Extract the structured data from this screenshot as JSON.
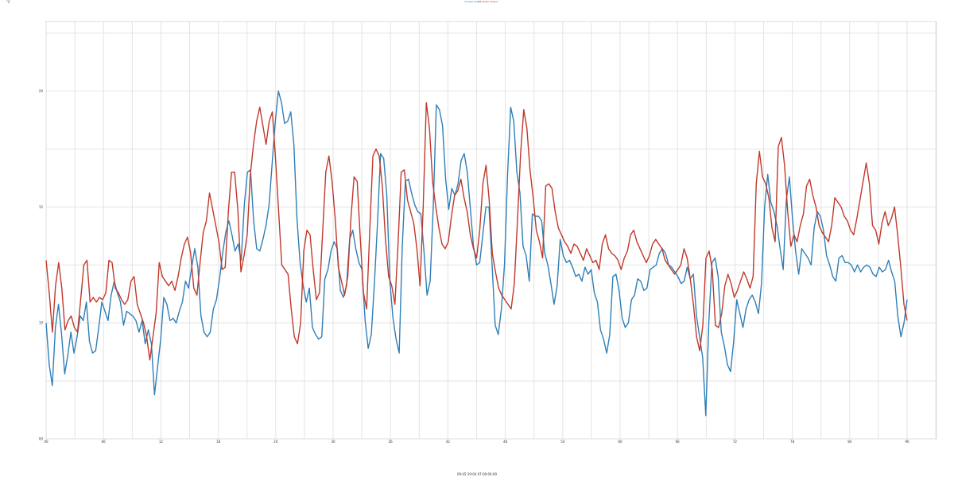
{
  "chart_data": {
    "type": "line",
    "title": "",
    "xlabel": "09:45:19:04 07:00:00:00",
    "ylabel": "",
    "corner_label": "°C",
    "x_ticks": [
      "00",
      "06",
      "12",
      "18",
      "24",
      "30",
      "36",
      "42",
      "48",
      "54",
      "60",
      "66",
      "72",
      "78",
      "84",
      "90"
    ],
    "y_ticks": [
      "00",
      "10",
      "15",
      "20"
    ],
    "ylim": [
      5,
      23
    ],
    "grid": true,
    "legend_placement": "top-center",
    "series": [
      {
        "name": "Real World",
        "color": "#2e7fb8",
        "values": [
          10.0,
          8.2,
          7.3,
          9.8,
          10.8,
          9.5,
          7.8,
          8.6,
          9.6,
          8.7,
          9.4,
          10.3,
          10.1,
          10.9,
          9.2,
          8.7,
          8.8,
          9.8,
          10.9,
          10.5,
          10.1,
          11.2,
          11.8,
          11.3,
          10.9,
          9.9,
          10.5,
          10.4,
          10.3,
          10.1,
          9.6,
          10.1,
          9.1,
          9.7,
          9.1,
          6.9,
          8.1,
          9.3,
          11.1,
          10.8,
          10.1,
          10.2,
          10.0,
          10.5,
          10.9,
          11.8,
          11.5,
          12.4,
          13.2,
          12.4,
          10.3,
          9.6,
          9.4,
          9.6,
          10.6,
          11.0,
          11.9,
          13.0,
          13.9,
          14.4,
          13.8,
          13.1,
          13.4,
          12.7,
          15.1,
          16.5,
          16.6,
          14.4,
          13.2,
          13.1,
          13.6,
          14.2,
          15.1,
          16.9,
          18.7,
          20.0,
          19.5,
          18.6,
          18.7,
          19.1,
          17.7,
          14.5,
          12.6,
          11.6,
          10.9,
          11.5,
          9.8,
          9.5,
          9.3,
          9.4,
          11.9,
          12.3,
          13.1,
          13.5,
          13.2,
          11.4,
          11.1,
          11.6,
          13.6,
          14.0,
          13.2,
          12.6,
          12.3,
          10.1,
          8.9,
          9.5,
          11.7,
          14.3,
          17.3,
          17.1,
          15.5,
          11.8,
          10.2,
          9.3,
          8.7,
          13.3,
          16.1,
          16.2,
          15.6,
          15.1,
          14.8,
          14.7,
          13.1,
          11.2,
          11.8,
          15.0,
          19.4,
          19.2,
          18.5,
          16.2,
          14.9,
          15.8,
          15.5,
          16.0,
          17.0,
          17.3,
          16.5,
          14.9,
          13.3,
          12.5,
          12.6,
          13.8,
          15.0,
          15.0,
          12.5,
          9.9,
          9.5,
          10.6,
          12.5,
          16.4,
          19.3,
          18.7,
          16.5,
          15.6,
          13.3,
          12.9,
          11.8,
          14.7,
          14.6,
          14.6,
          14.4,
          13.0,
          12.5,
          11.7,
          10.8,
          11.6,
          13.6,
          12.9,
          12.6,
          12.7,
          12.4,
          12.0,
          12.1,
          11.8,
          12.4,
          12.1,
          12.3,
          11.3,
          10.9,
          9.7,
          9.3,
          8.7,
          9.5,
          12.0,
          12.1,
          11.4,
          10.2,
          9.8,
          10.0,
          11.0,
          11.2,
          11.9,
          11.8,
          11.4,
          11.5,
          12.3,
          12.4,
          12.5,
          13.0,
          13.2,
          13.0,
          12.5,
          12.4,
          12.2,
          12.0,
          11.7,
          11.8,
          12.4,
          11.9,
          12.1,
          10.3,
          9.4,
          8.5,
          6.0,
          10.1,
          12.6,
          12.8,
          12.0,
          9.6,
          9.0,
          8.2,
          7.9,
          9.2,
          11.0,
          10.4,
          9.8,
          10.6,
          11.0,
          11.2,
          10.9,
          10.4,
          11.7,
          15.0,
          16.4,
          15.2,
          14.8,
          14.2,
          13.2,
          12.3,
          15.3,
          16.3,
          14.5,
          13.1,
          12.1,
          13.2,
          13.0,
          12.8,
          12.5,
          14.1,
          14.8,
          14.6,
          14.0,
          12.9,
          12.5,
          12.0,
          11.8,
          12.8,
          12.9,
          12.6,
          12.6,
          12.5,
          12.2,
          12.5,
          12.2,
          12.4,
          12.5,
          12.4,
          12.1,
          12.0,
          12.4,
          12.2,
          12.3,
          12.7,
          12.2,
          11.8,
          10.3,
          9.4,
          10.0,
          11.0
        ],
        "x_step": 0.5,
        "x_start": 0
      },
      {
        "name": "Model Output",
        "color": "#c0392b",
        "values": [
          12.7,
          11.3,
          9.6,
          11.6,
          12.6,
          11.5,
          9.7,
          10.1,
          10.3,
          9.8,
          9.6,
          11.0,
          12.5,
          12.7,
          10.9,
          11.1,
          10.9,
          11.1,
          11.0,
          11.3,
          12.7,
          12.6,
          11.5,
          11.3,
          11.0,
          10.8,
          11.0,
          11.8,
          12.0,
          10.8,
          10.4,
          10.0,
          9.4,
          8.4,
          9.4,
          10.4,
          12.6,
          12.0,
          11.8,
          11.6,
          11.8,
          11.4,
          12.0,
          12.8,
          13.4,
          13.7,
          13.0,
          11.5,
          11.2,
          12.6,
          13.9,
          14.4,
          15.6,
          14.9,
          14.2,
          13.5,
          12.3,
          12.4,
          14.8,
          16.5,
          16.5,
          14.9,
          12.2,
          12.9,
          13.8,
          16.4,
          17.7,
          18.7,
          19.3,
          18.5,
          17.7,
          18.7,
          19.1,
          17.1,
          14.8,
          12.5,
          12.3,
          12.1,
          10.6,
          9.4,
          9.1,
          10.0,
          13.1,
          14.0,
          13.8,
          12.3,
          11.0,
          11.3,
          13.9,
          16.5,
          17.2,
          16.1,
          14.5,
          12.4,
          11.8,
          11.2,
          12.0,
          14.5,
          16.3,
          16.1,
          13.6,
          11.3,
          10.6,
          14.0,
          17.2,
          17.5,
          17.2,
          15.9,
          13.6,
          12.0,
          11.6,
          10.8,
          13.4,
          16.5,
          16.6,
          15.3,
          14.8,
          14.3,
          13.2,
          11.6,
          15.0,
          19.5,
          18.4,
          16.1,
          15.0,
          14.1,
          13.4,
          13.2,
          13.5,
          14.6,
          15.5,
          15.7,
          16.2,
          15.4,
          14.8,
          13.8,
          13.2,
          12.8,
          14.0,
          16.0,
          16.8,
          15.3,
          13.0,
          12.2,
          11.5,
          11.2,
          11.0,
          10.8,
          10.6,
          11.7,
          14.4,
          17.3,
          19.2,
          18.4,
          16.6,
          15.4,
          14.0,
          13.5,
          12.8,
          15.9,
          16.0,
          15.8,
          14.8,
          14.1,
          13.8,
          13.5,
          13.3,
          13.0,
          13.4,
          13.3,
          13.0,
          12.7,
          13.2,
          12.9,
          12.6,
          12.7,
          12.3,
          13.4,
          13.8,
          13.2,
          13.0,
          12.9,
          12.7,
          12.3,
          12.8,
          13.1,
          13.8,
          14.0,
          13.5,
          13.2,
          12.9,
          12.6,
          12.9,
          13.4,
          13.6,
          13.4,
          13.2,
          12.7,
          12.5,
          12.3,
          12.1,
          12.3,
          12.5,
          13.2,
          12.8,
          11.9,
          10.8,
          9.4,
          8.8,
          9.9,
          12.8,
          13.1,
          12.3,
          9.9,
          9.8,
          10.4,
          11.6,
          12.1,
          11.7,
          11.1,
          11.4,
          11.8,
          12.2,
          11.9,
          11.5,
          12.0,
          16.0,
          17.4,
          16.3,
          16.0,
          15.4,
          14.1,
          13.5,
          17.6,
          18.0,
          16.8,
          14.8,
          13.3,
          13.8,
          13.5,
          14.2,
          14.7,
          15.9,
          16.2,
          15.5,
          15.0,
          14.2,
          13.9,
          13.7,
          13.5,
          14.2,
          15.4,
          15.2,
          15.0,
          14.6,
          14.4,
          14.0,
          13.8,
          14.5,
          15.3,
          16.1,
          16.9,
          16.0,
          14.2,
          14.0,
          13.4,
          14.3,
          14.8,
          14.2,
          14.5,
          15.0,
          13.8,
          12.4,
          10.8,
          10.1
        ]
      }
    ]
  }
}
